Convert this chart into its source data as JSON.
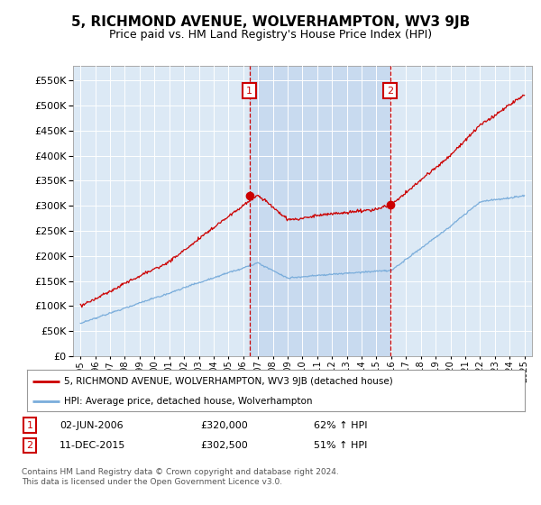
{
  "title": "5, RICHMOND AVENUE, WOLVERHAMPTON, WV3 9JB",
  "subtitle": "Price paid vs. HM Land Registry's House Price Index (HPI)",
  "background_color": "#ffffff",
  "plot_bg_color": "#dce9f5",
  "grid_color": "#ffffff",
  "red_line_color": "#cc0000",
  "blue_line_color": "#7aaddb",
  "shade_color": "#c5d8ee",
  "sale1_date_num": 2006.42,
  "sale1_price": 320000,
  "sale1_label": "1",
  "sale2_date_num": 2015.94,
  "sale2_price": 302500,
  "sale2_label": "2",
  "ylim": [
    0,
    580000
  ],
  "yticks": [
    0,
    50000,
    100000,
    150000,
    200000,
    250000,
    300000,
    350000,
    400000,
    450000,
    500000,
    550000
  ],
  "xlim_start": 1994.5,
  "xlim_end": 2025.5,
  "xticks": [
    1995,
    1996,
    1997,
    1998,
    1999,
    2000,
    2001,
    2002,
    2003,
    2004,
    2005,
    2006,
    2007,
    2008,
    2009,
    2010,
    2011,
    2012,
    2013,
    2014,
    2015,
    2016,
    2017,
    2018,
    2019,
    2020,
    2021,
    2022,
    2023,
    2024,
    2025
  ],
  "legend_red_label": "5, RICHMOND AVENUE, WOLVERHAMPTON, WV3 9JB (detached house)",
  "legend_blue_label": "HPI: Average price, detached house, Wolverhampton",
  "note1_label": "1",
  "note1_text": "02-JUN-2006",
  "note1_price": "£320,000",
  "note1_hpi": "62% ↑ HPI",
  "note2_label": "2",
  "note2_text": "11-DEC-2015",
  "note2_price": "£302,500",
  "note2_hpi": "51% ↑ HPI",
  "footer": "Contains HM Land Registry data © Crown copyright and database right 2024.\nThis data is licensed under the Open Government Licence v3.0."
}
